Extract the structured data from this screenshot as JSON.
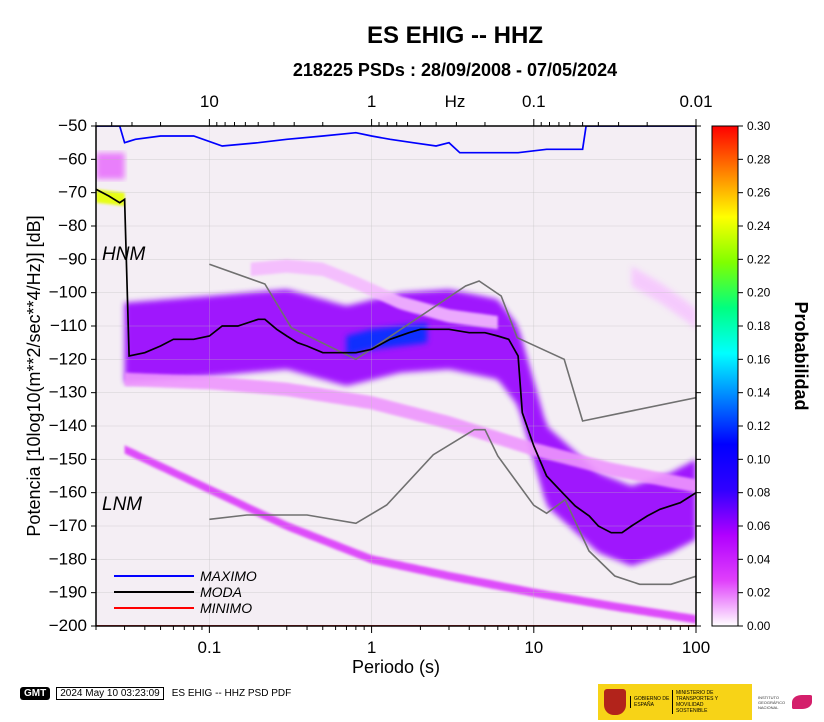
{
  "chart_data": {
    "type": "heatmap",
    "title": "ES EHIG -- HHZ",
    "subtitle": "218225 PSDs : 28/09/2008 - 07/05/2024",
    "xlabel": "Periodo (s)",
    "ylabel": "Potencia [10log10(m**2/sec**4/Hz)] [dB]",
    "xscale": "log",
    "xlim": [
      0.02,
      100
    ],
    "ylim": [
      -200,
      -50
    ],
    "x_ticks": [
      0.1,
      1,
      10,
      100
    ],
    "x_tick_labels": [
      "0.1",
      "1",
      "10",
      "100"
    ],
    "y_ticks": [
      -50,
      -60,
      -70,
      -80,
      -90,
      -100,
      -110,
      -120,
      -130,
      -140,
      -150,
      -160,
      -170,
      -180,
      -190,
      -200
    ],
    "y_tick_labels": [
      "−50",
      "−60",
      "−70",
      "−80",
      "−90",
      "−100",
      "−110",
      "−120",
      "−130",
      "−140",
      "−150",
      "−160",
      "−170",
      "−180",
      "−190",
      "−200"
    ],
    "top_axis": {
      "label": "Hz",
      "ticks": [
        10,
        1,
        0.1,
        0.01
      ],
      "tick_labels": [
        "10",
        "1",
        "0.1",
        "0.01"
      ]
    },
    "colorbar": {
      "label": "Probabilidad",
      "range": [
        0,
        0.3
      ],
      "ticks": [
        "0.00",
        "0.02",
        "0.04",
        "0.06",
        "0.08",
        "0.10",
        "0.12",
        "0.14",
        "0.16",
        "0.18",
        "0.20",
        "0.22",
        "0.24",
        "0.26",
        "0.28",
        "0.30"
      ],
      "colors": [
        "#ffffff",
        "#e040fb",
        "#b000ff",
        "#3000ff",
        "#0000ff",
        "#0080ff",
        "#00ffff",
        "#00ff80",
        "#80ff00",
        "#ffff00",
        "#ff8000",
        "#ff0000"
      ]
    },
    "noise_models": {
      "HNM": {
        "label": "HNM",
        "period": [
          0.1,
          0.22,
          0.32,
          0.8,
          3.8,
          4.6,
          6.3,
          7.9,
          15.4,
          20,
          354
        ],
        "db": [
          -91.5,
          -97.4,
          -110.5,
          -120,
          -98,
          -96.5,
          -101,
          -113.5,
          -120,
          -138.5,
          -126
        ]
      },
      "LNM": {
        "label": "LNM",
        "period": [
          0.1,
          0.17,
          0.4,
          0.8,
          1.24,
          2.4,
          4.3,
          5,
          6,
          10,
          12,
          15.6,
          21.9,
          31.6,
          45,
          70,
          101
        ],
        "db": [
          -168,
          -166.7,
          -166.7,
          -169.2,
          -163.7,
          -148.6,
          -141.1,
          -141.1,
          -149,
          -163.8,
          -166.2,
          -162.1,
          -177.5,
          -185,
          -187.5,
          -187.5,
          -185
        ]
      }
    },
    "series": [
      {
        "name": "MAXIMO",
        "color": "#0000ff",
        "period": [
          0.02,
          0.028,
          0.03,
          0.035,
          0.05,
          0.08,
          0.12,
          0.2,
          0.3,
          0.5,
          0.8,
          1.0,
          1.3,
          1.8,
          2.5,
          3.0,
          3.5,
          5,
          8,
          12,
          20,
          21,
          100
        ],
        "db": [
          -50,
          -50,
          -55,
          -54,
          -53,
          -53,
          -56,
          -55,
          -54,
          -53,
          -52,
          -53,
          -54,
          -55,
          -56,
          -55,
          -58,
          -58,
          -58,
          -57,
          -57,
          -50,
          -50
        ]
      },
      {
        "name": "MODA",
        "color": "#000000",
        "period": [
          0.02,
          0.024,
          0.028,
          0.03,
          0.032,
          0.04,
          0.05,
          0.06,
          0.08,
          0.1,
          0.12,
          0.15,
          0.2,
          0.22,
          0.26,
          0.3,
          0.35,
          0.4,
          0.5,
          0.6,
          0.8,
          1.0,
          1.3,
          1.7,
          2,
          3,
          4,
          5,
          6,
          7,
          8,
          8.5,
          10,
          12,
          15,
          18,
          22,
          25,
          30,
          35,
          40,
          50,
          60,
          80,
          100
        ],
        "db": [
          -69,
          -71,
          -73,
          -72,
          -119,
          -118,
          -116,
          -114,
          -114,
          -113,
          -110,
          -110,
          -108,
          -108,
          -111,
          -113,
          -115,
          -116,
          -118,
          -118,
          -118,
          -117,
          -114,
          -112,
          -111,
          -111,
          -112,
          -112,
          -113,
          -114,
          -119,
          -136,
          -146,
          -155,
          -160,
          -164,
          -167,
          -170,
          -172,
          -172,
          -170,
          -167,
          -165,
          -163,
          -160
        ]
      },
      {
        "name": "MINIMO",
        "color": "#ff0000",
        "period": [
          0.02,
          100
        ],
        "db": [
          -200,
          -200
        ]
      }
    ],
    "density_bands": [
      {
        "period": [
          0.02,
          0.03
        ],
        "center": [
          -71,
          -72
        ],
        "width": 4,
        "prob": 0.24
      },
      {
        "period": [
          0.03,
          0.1,
          0.3,
          0.7,
          1.5,
          3,
          6,
          8,
          12,
          25,
          40,
          70,
          100
        ],
        "center": [
          -115,
          -113,
          -111,
          -116,
          -112,
          -111,
          -114,
          -122,
          -152,
          -166,
          -170,
          -166,
          -162
        ],
        "width": 24,
        "prob": 0.06
      },
      {
        "period": [
          0.7,
          1.0,
          1.5,
          2.2
        ],
        "center": [
          -116,
          -114,
          -113,
          -112
        ],
        "width": 6,
        "prob": 0.12
      },
      {
        "period": [
          0.03,
          0.1,
          0.3,
          1,
          3,
          10,
          30,
          100
        ],
        "center": [
          -126,
          -127,
          -129,
          -133,
          -139,
          -147,
          -153,
          -158
        ],
        "width": 4,
        "prob": 0.015
      },
      {
        "period": [
          0.03,
          0.1,
          0.3,
          1,
          3,
          10,
          30,
          100
        ],
        "center": [
          -147,
          -159,
          -170,
          -180,
          -185,
          -190,
          -194,
          -198
        ],
        "width": 2.5,
        "prob": 0.03
      },
      {
        "period": [
          0.18,
          0.3,
          0.5,
          0.8,
          1.5,
          3,
          6
        ],
        "center": [
          -93,
          -92,
          -93,
          -97,
          -103,
          -107,
          -109
        ],
        "width": 4,
        "prob": 0.01
      },
      {
        "period": [
          0.02,
          0.03
        ],
        "center": [
          -62,
          -62
        ],
        "width": 8,
        "prob": 0.02
      },
      {
        "period": [
          40,
          60,
          90,
          100
        ],
        "center": [
          -95,
          -100,
          -106,
          -108
        ],
        "width": 6,
        "prob": 0.008
      }
    ]
  },
  "labels": {
    "hnm": "HNM",
    "lnm": "LNM",
    "legend_max": "MAXIMO",
    "legend_moda": "MODA",
    "legend_min": "MINIMO"
  },
  "footer": {
    "logo": "GMT",
    "timestamp": "2024 May 10 03:23:09",
    "caption": "ES EHIG -- HHZ PSD PDF"
  },
  "logos": {
    "ministry_left": "GOBIERNO DE ESPAÑA",
    "ministry_right": "MINISTERIO DE TRANSPORTES Y MOVILIDAD SOSTENIBLE",
    "ign": "INSTITUTO GEOGRÁFICO NACIONAL"
  }
}
